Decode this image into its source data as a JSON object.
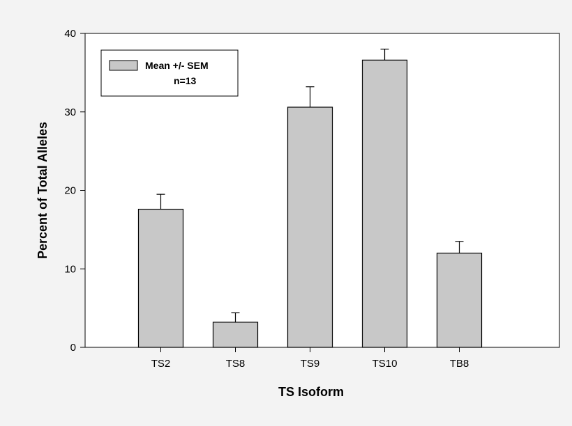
{
  "chart_data": {
    "type": "bar",
    "title": "",
    "xlabel": "TS Isoform",
    "ylabel": "Percent of Total Alleles",
    "categories": [
      "TS2",
      "TS8",
      "TS9",
      "TS10",
      "TB8"
    ],
    "series": [
      {
        "name": "Mean +/- SEM",
        "values": [
          17.6,
          3.2,
          30.6,
          36.6,
          12.0
        ],
        "error_plus": [
          1.9,
          1.2,
          2.6,
          1.4,
          1.5
        ]
      }
    ],
    "ylim": [
      0,
      40
    ],
    "yticks": [
      0,
      10,
      20,
      30,
      40
    ],
    "grid": false,
    "legend": {
      "position": "top-left",
      "lines": [
        "Mean +/- SEM",
        "n=13"
      ]
    },
    "colors": {
      "bar_fill": "#c8c8c8",
      "bar_stroke": "#000000",
      "plot_background": "#ffffff",
      "page_background": "#f3f3f3"
    }
  }
}
